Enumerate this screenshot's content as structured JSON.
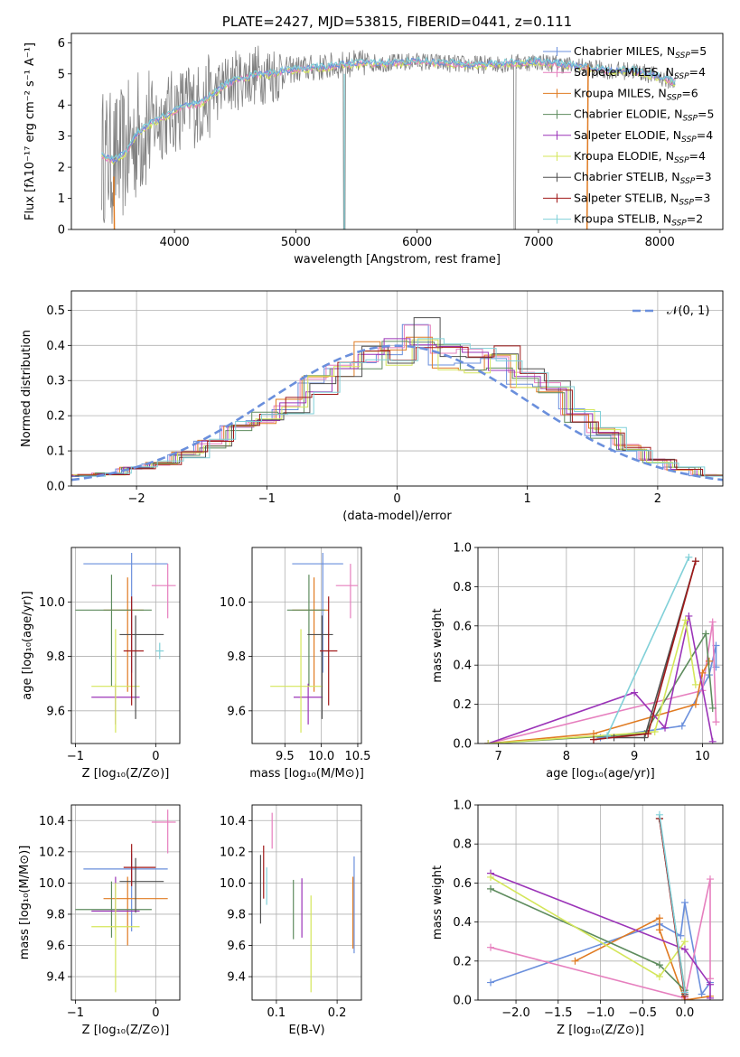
{
  "colors": {
    "chabrier_miles": "#6a8fdc",
    "salpeter_miles": "#e67fbe",
    "kroupa_miles": "#e07b22",
    "chabrier_elodie": "#5e8c5e",
    "salpeter_elodie": "#9b34b8",
    "kroupa_elodie": "#d4e65a",
    "chabrier_stelib": "#505050",
    "salpeter_stelib": "#a01818",
    "kroupa_stelib": "#80d0d8",
    "data_gray": "#808080",
    "grid": "#b0b0b0"
  },
  "chart_data": [
    {
      "id": "spectrum",
      "type": "line",
      "title": "PLATE=2427, MJD=53815, FIBERID=0441, z=0.111",
      "xlabel": "wavelength [Angstrom, rest frame]",
      "ylabel": "Flux [fλ10⁻¹⁷ erg cm⁻² s⁻¹ A⁻¹]",
      "xlim": [
        3150,
        8520
      ],
      "ylim": [
        0,
        6.3
      ],
      "xticks": [
        4000,
        5000,
        6000,
        7000,
        8000
      ],
      "yticks": [
        0,
        1,
        2,
        3,
        4,
        5,
        6
      ],
      "grid": false,
      "legend_position": "top-right",
      "continuum": {
        "x": [
          3400,
          3500,
          3600,
          3700,
          3800,
          3900,
          4000,
          4100,
          4200,
          4300,
          4400,
          4500,
          4600,
          4700,
          4800,
          4900,
          5000,
          5200,
          5400,
          5600,
          5800,
          6000,
          6200,
          6400,
          6600,
          6800,
          7000,
          7200,
          7400,
          7600,
          7800,
          8000,
          8150
        ],
        "y": [
          2.4,
          2.2,
          2.5,
          3.1,
          3.4,
          3.6,
          3.8,
          4.0,
          4.0,
          4.3,
          4.6,
          4.8,
          4.9,
          5.0,
          5.0,
          5.1,
          5.15,
          5.2,
          5.3,
          5.35,
          5.35,
          5.4,
          5.35,
          5.3,
          5.3,
          5.35,
          5.4,
          5.3,
          5.2,
          5.1,
          5.1,
          4.9,
          4.7
        ]
      },
      "legend": [
        {
          "label": "Chabrier MILES, N",
          "sub": "SSP",
          "tail": "=5",
          "color_key": "chabrier_miles"
        },
        {
          "label": "Salpeter MILES, N",
          "sub": "SSP",
          "tail": "=4",
          "color_key": "salpeter_miles"
        },
        {
          "label": "Kroupa MILES, N",
          "sub": "SSP",
          "tail": "=6",
          "color_key": "kroupa_miles"
        },
        {
          "label": "Chabrier ELODIE, N",
          "sub": "SSP",
          "tail": "=5",
          "color_key": "chabrier_elodie"
        },
        {
          "label": "Salpeter ELODIE, N",
          "sub": "SSP",
          "tail": "=4",
          "color_key": "salpeter_elodie"
        },
        {
          "label": "Kroupa ELODIE, N",
          "sub": "SSP",
          "tail": "=4",
          "color_key": "kroupa_elodie"
        },
        {
          "label": "Chabrier STELIB, N",
          "sub": "SSP",
          "tail": "=3",
          "color_key": "chabrier_stelib"
        },
        {
          "label": "Salpeter STELIB, N",
          "sub": "SSP",
          "tail": "=3",
          "color_key": "salpeter_stelib"
        },
        {
          "label": "Kroupa STELIB, N",
          "sub": "SSP",
          "tail": "=2",
          "color_key": "kroupa_stelib"
        }
      ]
    },
    {
      "id": "residuals",
      "type": "histogram",
      "xlabel": "(data-model)/error",
      "ylabel": "Normed distribution",
      "xlim": [
        -2.5,
        2.5
      ],
      "ylim": [
        0,
        0.555
      ],
      "xticks": [
        -2,
        -1,
        0,
        1,
        2
      ],
      "yticks": [
        0.0,
        0.1,
        0.2,
        0.3,
        0.4,
        0.5
      ],
      "grid": true,
      "legend_position": "top-right",
      "normal_label": "𝒩(0, 1)",
      "bins": [
        -2.5,
        -2.3,
        -2.1,
        -1.9,
        -1.7,
        -1.5,
        -1.3,
        -1.1,
        -0.9,
        -0.7,
        -0.5,
        -0.3,
        -0.1,
        0.1,
        0.3,
        0.5,
        0.7,
        0.9,
        1.1,
        1.3,
        1.5,
        1.7,
        1.9,
        2.1,
        2.3,
        2.5
      ],
      "hist_base": [
        0.03,
        0.035,
        0.05,
        0.065,
        0.09,
        0.12,
        0.17,
        0.19,
        0.23,
        0.29,
        0.34,
        0.37,
        0.38,
        0.44,
        0.37,
        0.36,
        0.36,
        0.31,
        0.27,
        0.2,
        0.15,
        0.11,
        0.07,
        0.05,
        0.03
      ]
    },
    {
      "id": "age_vs_z",
      "type": "errorbar",
      "xlabel": "Z [log₁₀(Z/Z⊙)]",
      "ylabel": "age  [log₁₀(age/yr)]",
      "xlim": [
        -1.05,
        0.3
      ],
      "ylim": [
        9.48,
        10.2
      ],
      "xticks": [
        -1,
        0
      ],
      "yticks": [
        9.6,
        9.8,
        10.0
      ],
      "grid": true,
      "points": [
        {
          "color_key": "chabrier_miles",
          "x": -0.3,
          "xerr": [
            0.6,
            0.45
          ],
          "y": 10.14,
          "yerr": [
            0.4,
            0.04
          ]
        },
        {
          "color_key": "salpeter_miles",
          "x": 0.15,
          "xerr": [
            0.2,
            0.1
          ],
          "y": 10.06,
          "yerr": [
            0.12,
            0.08
          ]
        },
        {
          "color_key": "kroupa_miles",
          "x": -0.35,
          "xerr": [
            0.3,
            0.2
          ],
          "y": 9.97,
          "yerr": [
            0.3,
            0.12
          ]
        },
        {
          "color_key": "chabrier_elodie",
          "x": -0.55,
          "xerr": [
            0.45,
            0.5
          ],
          "y": 9.97,
          "yerr": [
            0.28,
            0.13
          ]
        },
        {
          "color_key": "salpeter_elodie",
          "x": -0.5,
          "xerr": [
            0.3,
            0.3
          ],
          "y": 9.65,
          "yerr": [
            0.1,
            0.05
          ]
        },
        {
          "color_key": "kroupa_elodie",
          "x": -0.5,
          "xerr": [
            0.3,
            0.3
          ],
          "y": 9.69,
          "yerr": [
            0.17,
            0.21
          ]
        },
        {
          "color_key": "chabrier_stelib",
          "x": -0.25,
          "xerr": [
            0.2,
            0.35
          ],
          "y": 9.88,
          "yerr": [
            0.31,
            0.07
          ]
        },
        {
          "color_key": "salpeter_stelib",
          "x": -0.3,
          "xerr": [
            0.1,
            0.15
          ],
          "y": 9.82,
          "yerr": [
            0.2,
            0.2
          ]
        },
        {
          "color_key": "kroupa_stelib",
          "x": 0.05,
          "xerr": [
            0.05,
            0.05
          ],
          "y": 9.82,
          "yerr": [
            0.03,
            0.03
          ]
        }
      ]
    },
    {
      "id": "age_vs_mass",
      "type": "errorbar",
      "xlabel": "mass [log₁₀(M/M⊙)]",
      "ylabel": "",
      "xlim": [
        9.05,
        10.55
      ],
      "ylim": [
        9.48,
        10.2
      ],
      "xticks": [
        9.5,
        10.0,
        10.5
      ],
      "yticks": [
        9.6,
        9.8,
        10.0
      ],
      "grid": true,
      "points": [
        {
          "color_key": "chabrier_miles",
          "x": 10.02,
          "xerr": [
            0.42,
            0.28
          ],
          "y": 10.14,
          "yerr": [
            0.4,
            0.04
          ]
        },
        {
          "color_key": "salpeter_miles",
          "x": 10.4,
          "xerr": [
            0.2,
            0.1
          ],
          "y": 10.06,
          "yerr": [
            0.12,
            0.08
          ]
        },
        {
          "color_key": "kroupa_miles",
          "x": 9.9,
          "xerr": [
            0.3,
            0.2
          ],
          "y": 9.97,
          "yerr": [
            0.3,
            0.12
          ]
        },
        {
          "color_key": "chabrier_elodie",
          "x": 9.83,
          "xerr": [
            0.3,
            0.22
          ],
          "y": 9.97,
          "yerr": [
            0.28,
            0.13
          ]
        },
        {
          "color_key": "salpeter_elodie",
          "x": 9.82,
          "xerr": [
            0.2,
            0.2
          ],
          "y": 9.65,
          "yerr": [
            0.1,
            0.05
          ]
        },
        {
          "color_key": "kroupa_elodie",
          "x": 9.72,
          "xerr": [
            0.42,
            0.3
          ],
          "y": 9.69,
          "yerr": [
            0.17,
            0.21
          ]
        },
        {
          "color_key": "chabrier_stelib",
          "x": 10.01,
          "xerr": [
            0.2,
            0.15
          ],
          "y": 9.88,
          "yerr": [
            0.31,
            0.07
          ]
        },
        {
          "color_key": "salpeter_stelib",
          "x": 10.1,
          "xerr": [
            0.12,
            0.12
          ],
          "y": 9.82,
          "yerr": [
            0.2,
            0.2
          ]
        }
      ]
    },
    {
      "id": "weight_vs_age",
      "type": "line",
      "xlabel": "age  [log₁₀(age/yr)]",
      "ylabel": "mass weight",
      "xlim": [
        6.7,
        10.3
      ],
      "ylim": [
        0,
        1.0
      ],
      "xticks": [
        7,
        8,
        9,
        10
      ],
      "yticks": [
        0.0,
        0.2,
        0.4,
        0.6,
        0.8,
        1.0
      ],
      "grid": true,
      "series": [
        {
          "color_key": "chabrier_miles",
          "x": [
            8.5,
            9.7,
            10.1,
            10.2,
            10.2
          ],
          "y": [
            0.03,
            0.09,
            0.35,
            0.5,
            0.39
          ]
        },
        {
          "color_key": "salpeter_miles",
          "x": [
            6.85,
            10.0,
            10.15,
            10.2
          ],
          "y": [
            0.0,
            0.27,
            0.62,
            0.11
          ]
        },
        {
          "color_key": "kroupa_miles",
          "x": [
            6.85,
            8.4,
            9.9,
            10.0,
            10.1
          ],
          "y": [
            0.0,
            0.05,
            0.2,
            0.36,
            0.42
          ]
        },
        {
          "color_key": "chabrier_elodie",
          "x": [
            6.85,
            9.15,
            10.05,
            10.15
          ],
          "y": [
            0.0,
            0.05,
            0.56,
            0.18
          ]
        },
        {
          "color_key": "salpeter_elodie",
          "x": [
            6.85,
            9.0,
            9.45,
            9.8,
            10.15
          ],
          "y": [
            0.0,
            0.26,
            0.08,
            0.65,
            0.01
          ]
        },
        {
          "color_key": "kroupa_elodie",
          "x": [
            6.85,
            9.3,
            9.75,
            9.9
          ],
          "y": [
            0.0,
            0.06,
            0.63,
            0.3
          ]
        },
        {
          "color_key": "chabrier_stelib",
          "x": [
            8.7,
            9.15,
            9.9
          ],
          "y": [
            0.03,
            0.03,
            0.93
          ]
        },
        {
          "color_key": "salpeter_stelib",
          "x": [
            8.4,
            9.2,
            9.9
          ],
          "y": [
            0.02,
            0.05,
            0.93
          ]
        },
        {
          "color_key": "kroupa_stelib",
          "x": [
            8.6,
            9.8
          ],
          "y": [
            0.04,
            0.95
          ]
        }
      ]
    },
    {
      "id": "mass_vs_z",
      "type": "errorbar",
      "xlabel": "Z [log₁₀(Z/Z⊙)]",
      "ylabel": "mass [log₁₀(M/M⊙)]",
      "xlim": [
        -1.05,
        0.3
      ],
      "ylim": [
        9.25,
        10.5
      ],
      "xticks": [
        -1,
        0
      ],
      "yticks": [
        9.4,
        9.6,
        9.8,
        10.0,
        10.2,
        10.4
      ],
      "grid": true,
      "points": [
        {
          "color_key": "chabrier_miles",
          "x": -0.3,
          "xerr": [
            0.6,
            0.45
          ],
          "y": 10.09,
          "yerr": [
            0.4,
            0.1
          ]
        },
        {
          "color_key": "salpeter_miles",
          "x": 0.15,
          "xerr": [
            0.2,
            0.1
          ],
          "y": 10.39,
          "yerr": [
            0.2,
            0.08
          ]
        },
        {
          "color_key": "kroupa_miles",
          "x": -0.35,
          "xerr": [
            0.3,
            0.5
          ],
          "y": 9.9,
          "yerr": [
            0.3,
            0.14
          ]
        },
        {
          "color_key": "chabrier_elodie",
          "x": -0.55,
          "xerr": [
            0.45,
            0.5
          ],
          "y": 9.83,
          "yerr": [
            0.18,
            0.18
          ]
        },
        {
          "color_key": "salpeter_elodie",
          "x": -0.5,
          "xerr": [
            0.3,
            0.3
          ],
          "y": 9.82,
          "yerr": [
            0.12,
            0.22
          ]
        },
        {
          "color_key": "kroupa_elodie",
          "x": -0.5,
          "xerr": [
            0.3,
            0.3
          ],
          "y": 9.72,
          "yerr": [
            0.42,
            0.28
          ]
        },
        {
          "color_key": "chabrier_stelib",
          "x": -0.25,
          "xerr": [
            0.2,
            0.35
          ],
          "y": 10.01,
          "yerr": [
            0.2,
            0.15
          ]
        },
        {
          "color_key": "salpeter_stelib",
          "x": -0.3,
          "xerr": [
            0.1,
            0.3
          ],
          "y": 10.1,
          "yerr": [
            0.12,
            0.15
          ]
        }
      ]
    },
    {
      "id": "mass_vs_ebv",
      "type": "errorbar",
      "xlabel": "E(B-V)",
      "ylabel": "",
      "xlim": [
        0.06,
        0.24
      ],
      "ylim": [
        9.25,
        10.5
      ],
      "xticks": [
        0.1,
        0.2
      ],
      "yticks": [
        9.4,
        9.6,
        9.8,
        10.0,
        10.2,
        10.4
      ],
      "grid": true,
      "points": [
        {
          "color_key": "chabrier_miles",
          "x": 0.228,
          "y": 9.82,
          "yerr": [
            0.27,
            0.35
          ]
        },
        {
          "color_key": "salpeter_miles",
          "x": 0.093,
          "y": 10.32,
          "yerr": [
            0.1,
            0.13
          ]
        },
        {
          "color_key": "kroupa_miles",
          "x": 0.226,
          "y": 9.8,
          "yerr": [
            0.22,
            0.24
          ]
        },
        {
          "color_key": "chabrier_elodie",
          "x": 0.128,
          "y": 9.84,
          "yerr": [
            0.2,
            0.18
          ]
        },
        {
          "color_key": "salpeter_elodie",
          "x": 0.142,
          "y": 9.85,
          "yerr": [
            0.2,
            0.18
          ]
        },
        {
          "color_key": "kroupa_elodie",
          "x": 0.157,
          "y": 9.6,
          "yerr": [
            0.3,
            0.32
          ]
        },
        {
          "color_key": "chabrier_stelib",
          "x": 0.074,
          "y": 9.98,
          "yerr": [
            0.24,
            0.2
          ]
        },
        {
          "color_key": "salpeter_stelib",
          "x": 0.079,
          "y": 10.06,
          "yerr": [
            0.16,
            0.18
          ]
        },
        {
          "color_key": "kroupa_stelib",
          "x": 0.084,
          "y": 9.96,
          "yerr": [
            0.1,
            0.14
          ]
        }
      ]
    },
    {
      "id": "weight_vs_z",
      "type": "line",
      "xlabel": "Z [log₁₀(Z/Z⊙)]",
      "ylabel": "mass weight",
      "xlim": [
        -2.45,
        0.45
      ],
      "ylim": [
        0,
        1.0
      ],
      "xticks": [
        -2.0,
        -1.5,
        -1.0,
        -0.5,
        0.0
      ],
      "yticks": [
        0.0,
        0.2,
        0.4,
        0.6,
        0.8,
        1.0
      ],
      "grid": true,
      "series": [
        {
          "color_key": "chabrier_miles",
          "x": [
            -2.3,
            -0.3,
            -0.05,
            0.0,
            0.2,
            0.3
          ],
          "y": [
            0.09,
            0.39,
            0.33,
            0.5,
            0.03,
            0.09
          ]
        },
        {
          "color_key": "salpeter_miles",
          "x": [
            -2.3,
            0.0,
            0.3,
            0.3
          ],
          "y": [
            0.27,
            0.01,
            0.62,
            0.11
          ]
        },
        {
          "color_key": "kroupa_miles",
          "x": [
            -1.3,
            -0.3,
            -0.3,
            0.0,
            0.3
          ],
          "y": [
            0.2,
            0.42,
            0.36,
            0.0,
            0.02
          ]
        },
        {
          "color_key": "chabrier_elodie",
          "x": [
            -2.3,
            -0.3,
            0.0,
            -0.3
          ],
          "y": [
            0.57,
            0.18,
            0.05,
            0.93
          ]
        },
        {
          "color_key": "salpeter_elodie",
          "x": [
            -2.3,
            0.0,
            0.3,
            0.3
          ],
          "y": [
            0.65,
            0.26,
            0.08,
            0.01
          ]
        },
        {
          "color_key": "kroupa_elodie",
          "x": [
            -2.3,
            -0.3,
            0.0
          ],
          "y": [
            0.63,
            0.12,
            0.3
          ]
        },
        {
          "color_key": "chabrier_stelib",
          "x": [
            -0.3,
            0.0
          ],
          "y": [
            0.93,
            0.03
          ]
        },
        {
          "color_key": "salpeter_stelib",
          "x": [
            -0.3,
            0.0
          ],
          "y": [
            0.93,
            0.02
          ]
        },
        {
          "color_key": "kroupa_stelib",
          "x": [
            -0.3,
            0.0
          ],
          "y": [
            0.95,
            0.04
          ]
        }
      ]
    }
  ]
}
